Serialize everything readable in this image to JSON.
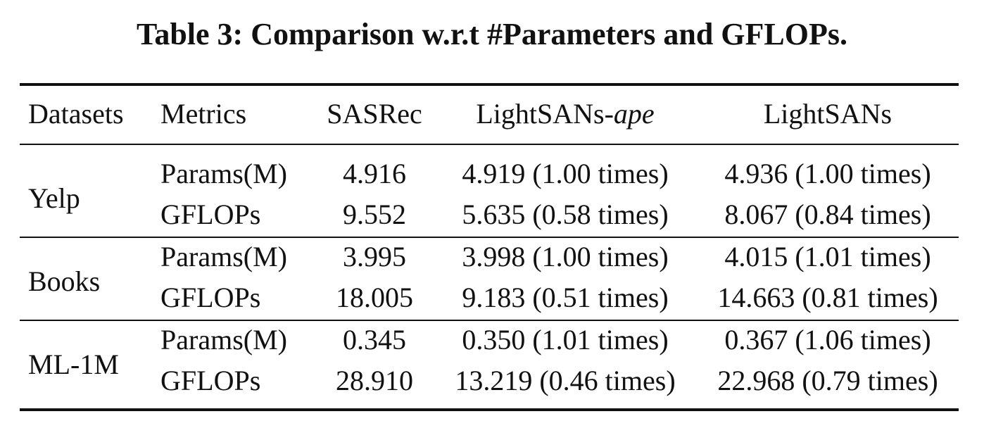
{
  "title": "Table 3: Comparison w.r.t #Parameters and GFLOPs.",
  "table": {
    "headers": [
      "Datasets",
      "Metrics",
      "SASRec",
      {
        "prefix": "LightSANs-",
        "italic": "ape"
      },
      "LightSANs"
    ],
    "groups": [
      {
        "dataset": "Yelp",
        "rows": [
          [
            "Params(M)",
            "4.916",
            "4.919 (1.00 times)",
            "4.936 (1.00 times)"
          ],
          [
            "GFLOPs",
            "9.552",
            "5.635 (0.58 times)",
            "8.067 (0.84 times)"
          ]
        ]
      },
      {
        "dataset": "Books",
        "rows": [
          [
            "Params(M)",
            "3.995",
            "3.998 (1.00 times)",
            "4.015 (1.01 times)"
          ],
          [
            "GFLOPs",
            "18.005",
            "9.183 (0.51 times)",
            "14.663 (0.81 times)"
          ]
        ]
      },
      {
        "dataset": "ML-1M",
        "rows": [
          [
            "Params(M)",
            "0.345",
            "0.350 (1.01 times)",
            "0.367 (1.06 times)"
          ],
          [
            "GFLOPs",
            "28.910",
            "13.219 (0.46 times)",
            "22.968 (0.79 times)"
          ]
        ]
      }
    ]
  }
}
